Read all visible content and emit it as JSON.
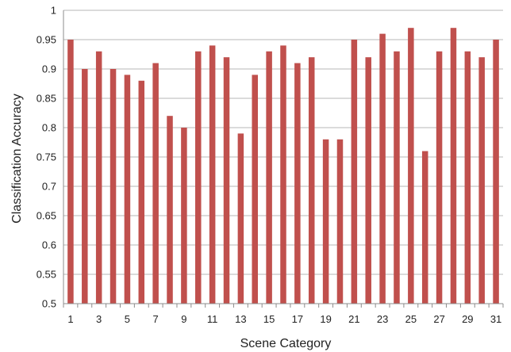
{
  "chart_data": {
    "type": "bar",
    "title": "",
    "xlabel": "Scene Category",
    "ylabel": "Classification  Accuracy",
    "categories": [
      "1",
      "2",
      "3",
      "4",
      "5",
      "6",
      "7",
      "8",
      "9",
      "10",
      "11",
      "12",
      "13",
      "14",
      "15",
      "16",
      "17",
      "18",
      "19",
      "20",
      "21",
      "22",
      "23",
      "24",
      "25",
      "26",
      "27",
      "28",
      "29",
      "30",
      "31"
    ],
    "x_tick_labels": [
      "1",
      "3",
      "5",
      "7",
      "9",
      "11",
      "13",
      "15",
      "17",
      "19",
      "21",
      "23",
      "25",
      "27",
      "29",
      "31"
    ],
    "values": [
      0.95,
      0.9,
      0.93,
      0.9,
      0.89,
      0.88,
      0.91,
      0.82,
      0.8,
      0.93,
      0.94,
      0.92,
      0.79,
      0.89,
      0.93,
      0.94,
      0.91,
      0.92,
      0.78,
      0.78,
      0.95,
      0.92,
      0.96,
      0.93,
      0.97,
      0.76,
      0.93,
      0.97,
      0.93,
      0.92,
      0.95
    ],
    "y_ticks": [
      "0.5",
      "0.55",
      "0.6",
      "0.65",
      "0.7",
      "0.75",
      "0.8",
      "0.85",
      "0.9",
      "0.95",
      "1"
    ],
    "ylim": [
      0.5,
      1.0
    ],
    "grid": true,
    "legend": "none",
    "colors": {
      "bar": "#c0504d",
      "grid": "#b7b7b7",
      "axis": "#8c8c8c",
      "text": "#222222"
    }
  }
}
